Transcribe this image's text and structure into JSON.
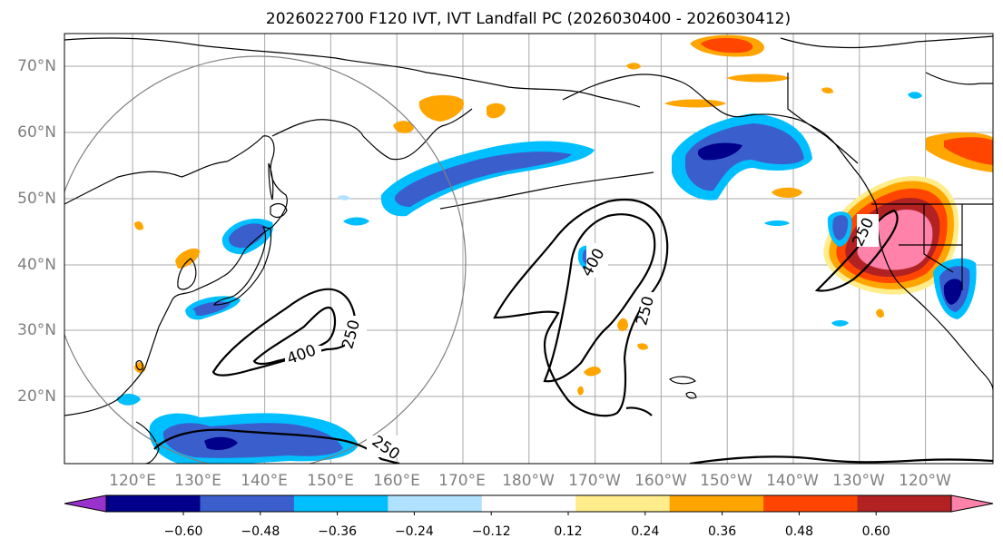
{
  "title": "2026022700 F120 IVT, IVT Landfall PC (2026030400 - 2026030412)",
  "map": {
    "lat_labels": [
      "70°N",
      "60°N",
      "50°N",
      "40°N",
      "30°N",
      "20°N"
    ],
    "lon_labels": [
      "120°E",
      "130°E",
      "140°E",
      "150°E",
      "160°E",
      "170°E",
      "180°W",
      "170°W",
      "160°W",
      "150°W",
      "140°W",
      "130°W",
      "120°W"
    ],
    "contour_labels": [
      "400",
      "250",
      "400",
      "250",
      "250",
      "250"
    ]
  },
  "colorbar": {
    "colors": [
      "#9932cc",
      "#00008b",
      "#3a5fcd",
      "#00bfff",
      "#b0e2ff",
      "#ffffff",
      "#ffec8b",
      "#ffa500",
      "#ff4500",
      "#b22222",
      "#ff82ab"
    ],
    "tick_labels": [
      "−0.60",
      "−0.48",
      "−0.36",
      "−0.24",
      "−0.12",
      "0.12",
      "0.24",
      "0.36",
      "0.48",
      "0.60"
    ]
  },
  "colors": {
    "coast": "#000000",
    "grid": "#a9a9a9",
    "circle": "#808080",
    "ivt_contour": "#000000"
  }
}
